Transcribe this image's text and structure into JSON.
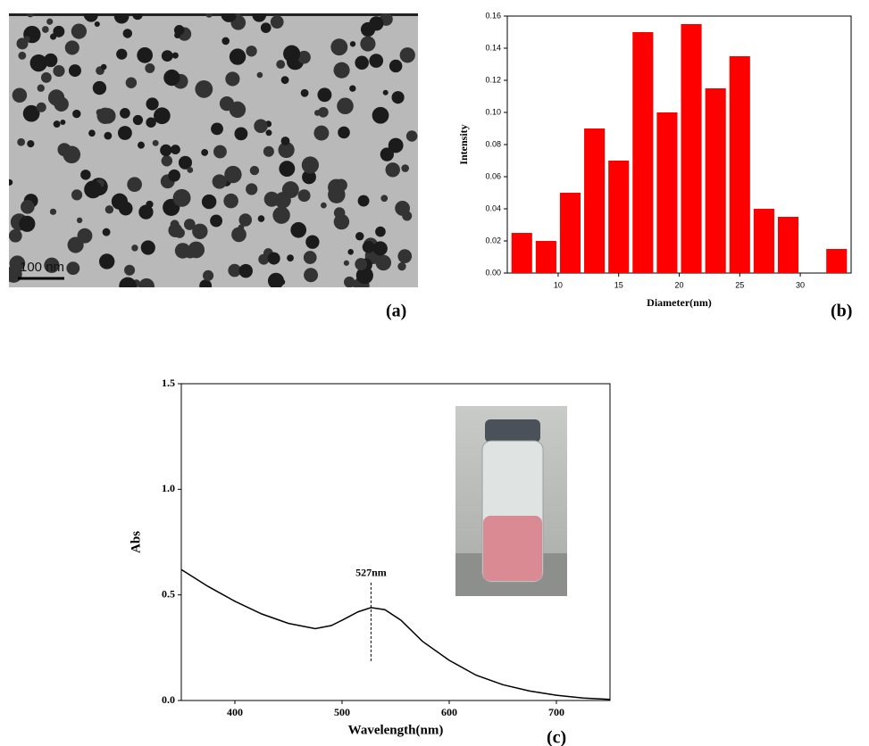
{
  "chart_data": [
    {
      "type": "image",
      "scale_bar": "100 nm",
      "panel_label": "(a)"
    },
    {
      "type": "histogram",
      "panel_label": "(b)",
      "xlabel": "Diameter(nm)",
      "ylabel": "Intensity",
      "color": "#ff0000",
      "bins": [
        6,
        8,
        10,
        12,
        14,
        16,
        18,
        20,
        22,
        24,
        26,
        28,
        30,
        32,
        34
      ],
      "values": [
        0.025,
        0.02,
        0.05,
        0.09,
        0.07,
        0.15,
        0.1,
        0.155,
        0.115,
        0.135,
        0.04,
        0.035,
        0,
        0.015
      ],
      "xlim": [
        5.8,
        34.2
      ],
      "xticks": [
        10,
        15,
        20,
        25,
        30
      ],
      "ylim": [
        0,
        0.16
      ],
      "yticks": [
        {
          "value": 0,
          "label": "0.00"
        },
        0.02,
        0.04,
        0.06,
        0.08,
        {
          "value": 0.1,
          "label": "0.10"
        },
        0.12,
        0.14,
        0.16
      ]
    },
    {
      "type": "line",
      "panel_label": "(c)",
      "xlabel": "Wavelength(nm)",
      "ylabel": "Abs",
      "color": "#000000",
      "x": [
        350,
        375,
        400,
        425,
        450,
        475,
        490,
        500,
        515,
        527,
        540,
        555,
        575,
        600,
        625,
        650,
        675,
        700,
        725,
        750
      ],
      "values": [
        0.62,
        0.54,
        0.47,
        0.41,
        0.365,
        0.34,
        0.355,
        0.38,
        0.42,
        0.44,
        0.43,
        0.38,
        0.28,
        0.19,
        0.12,
        0.075,
        0.045,
        0.025,
        0.012,
        0.005
      ],
      "xlim": [
        350,
        750
      ],
      "xticks": [
        400,
        500,
        600,
        700
      ],
      "ylim": [
        0,
        1.5
      ],
      "yticks": [
        {
          "value": 0,
          "label": "0.0"
        },
        0.5,
        {
          "value": 1,
          "label": "1.0"
        },
        1.5
      ],
      "annotations": [
        {
          "text": "527nm",
          "x": 527
        }
      ]
    }
  ]
}
